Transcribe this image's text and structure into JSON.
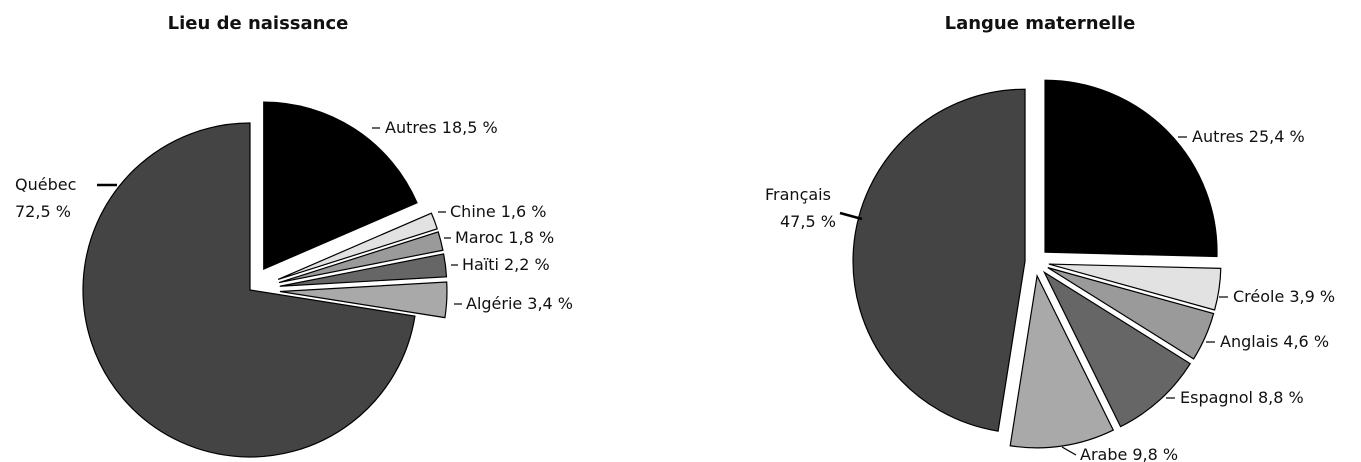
{
  "chart_data": [
    {
      "type": "pie",
      "title": "Lieu de naissance",
      "categories": [
        "Autres",
        "Chine",
        "Maroc",
        "Haïti",
        "Algérie",
        "Québec"
      ],
      "values": [
        18.5,
        1.6,
        1.8,
        2.2,
        3.4,
        72.5
      ],
      "value_labels": [
        "18,5 %",
        "1,6 %",
        "1,8 %",
        "2,2 %",
        "3,4 %",
        "72,5 %"
      ],
      "colors": [
        "#000000",
        "#e2e2e2",
        "#9a9a9a",
        "#666666",
        "#a9a9a9",
        "#444444"
      ]
    },
    {
      "type": "pie",
      "title": "Langue maternelle",
      "categories": [
        "Autres",
        "Créole",
        "Anglais",
        "Espagnol",
        "Arabe",
        "Français"
      ],
      "values": [
        25.4,
        3.9,
        4.6,
        8.8,
        9.8,
        47.5
      ],
      "value_labels": [
        "25,4 %",
        "3,9 %",
        "4,6 %",
        "8,8 %",
        "9,8 %",
        "47,5 %"
      ],
      "colors": [
        "#000000",
        "#e2e2e2",
        "#9a9a9a",
        "#666666",
        "#a9a9a9",
        "#444444"
      ]
    }
  ]
}
